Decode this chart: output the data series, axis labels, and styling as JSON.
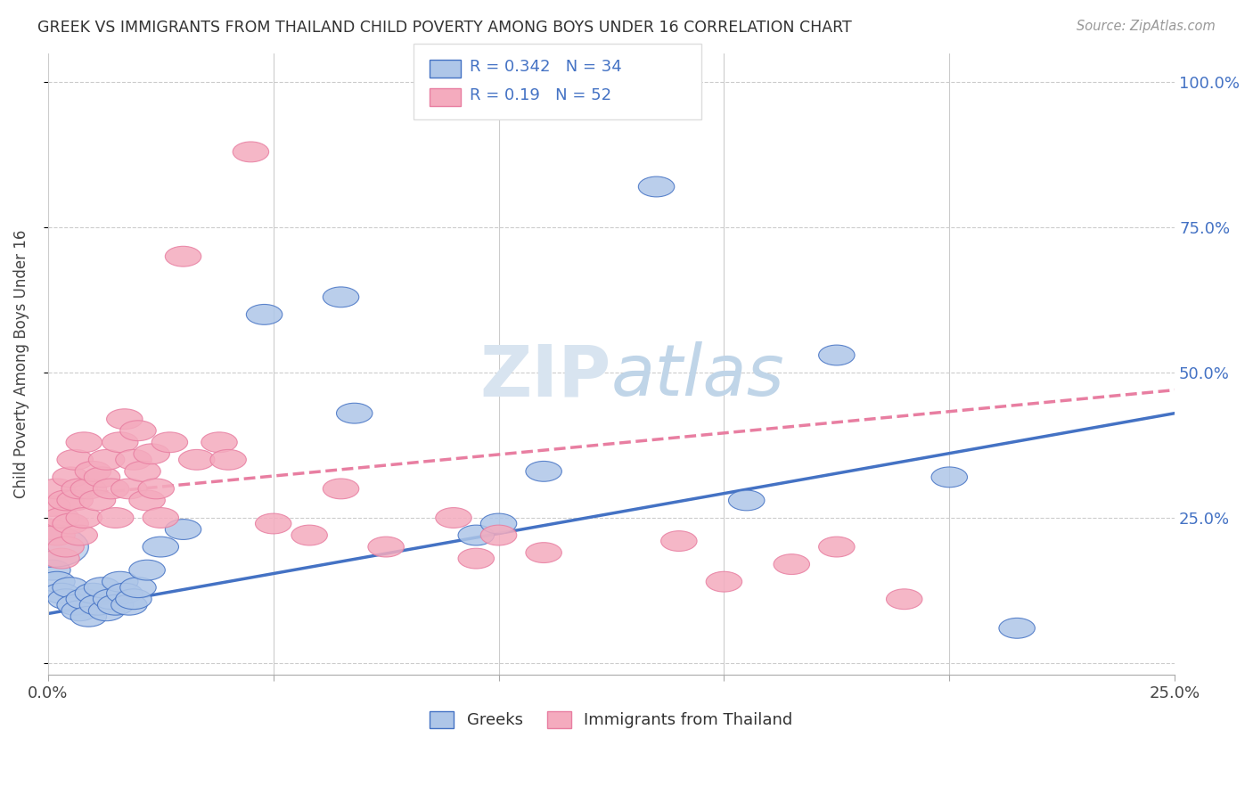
{
  "title": "GREEK VS IMMIGRANTS FROM THAILAND CHILD POVERTY AMONG BOYS UNDER 16 CORRELATION CHART",
  "source": "Source: ZipAtlas.com",
  "ylabel": "Child Poverty Among Boys Under 16",
  "yticks": [
    "",
    "25.0%",
    "50.0%",
    "75.0%",
    "100.0%"
  ],
  "ytick_vals": [
    0,
    0.25,
    0.5,
    0.75,
    1.0
  ],
  "xlim": [
    0,
    0.25
  ],
  "ylim": [
    -0.02,
    1.05
  ],
  "blue_color": "#AEC6E8",
  "pink_color": "#F4ABBE",
  "line_blue": "#4472C4",
  "line_pink": "#E87EA1",
  "R_blue": 0.342,
  "N_blue": 34,
  "R_pink": 0.19,
  "N_pink": 52,
  "blue_line_x0": 0.0,
  "blue_line_y0": 0.085,
  "blue_line_x1": 0.25,
  "blue_line_y1": 0.43,
  "pink_line_x0": 0.0,
  "pink_line_y0": 0.285,
  "pink_line_x1": 0.25,
  "pink_line_y1": 0.47,
  "greek_x": [
    0.001,
    0.002,
    0.003,
    0.004,
    0.005,
    0.006,
    0.007,
    0.008,
    0.009,
    0.01,
    0.011,
    0.012,
    0.013,
    0.014,
    0.015,
    0.016,
    0.017,
    0.018,
    0.019,
    0.02,
    0.022,
    0.025,
    0.03,
    0.048,
    0.065,
    0.068,
    0.095,
    0.1,
    0.11,
    0.135,
    0.155,
    0.175,
    0.2,
    0.215
  ],
  "greek_y": [
    0.16,
    0.14,
    0.12,
    0.11,
    0.13,
    0.1,
    0.09,
    0.11,
    0.08,
    0.12,
    0.1,
    0.13,
    0.09,
    0.11,
    0.1,
    0.14,
    0.12,
    0.1,
    0.11,
    0.13,
    0.16,
    0.2,
    0.23,
    0.6,
    0.63,
    0.43,
    0.22,
    0.24,
    0.33,
    0.82,
    0.28,
    0.53,
    0.32,
    0.06
  ],
  "thai_x": [
    0.001,
    0.001,
    0.002,
    0.002,
    0.003,
    0.003,
    0.004,
    0.004,
    0.005,
    0.005,
    0.006,
    0.006,
    0.007,
    0.007,
    0.008,
    0.008,
    0.009,
    0.01,
    0.011,
    0.012,
    0.013,
    0.014,
    0.015,
    0.016,
    0.017,
    0.018,
    0.019,
    0.02,
    0.021,
    0.022,
    0.023,
    0.024,
    0.025,
    0.027,
    0.03,
    0.033,
    0.038,
    0.04,
    0.045,
    0.05,
    0.058,
    0.065,
    0.075,
    0.09,
    0.095,
    0.1,
    0.11,
    0.14,
    0.15,
    0.165,
    0.175,
    0.19
  ],
  "thai_y": [
    0.27,
    0.23,
    0.3,
    0.22,
    0.25,
    0.18,
    0.28,
    0.2,
    0.32,
    0.24,
    0.35,
    0.28,
    0.3,
    0.22,
    0.38,
    0.25,
    0.3,
    0.33,
    0.28,
    0.32,
    0.35,
    0.3,
    0.25,
    0.38,
    0.42,
    0.3,
    0.35,
    0.4,
    0.33,
    0.28,
    0.36,
    0.3,
    0.25,
    0.38,
    0.7,
    0.35,
    0.38,
    0.35,
    0.88,
    0.24,
    0.22,
    0.3,
    0.2,
    0.25,
    0.18,
    0.22,
    0.19,
    0.21,
    0.14,
    0.17,
    0.2,
    0.11
  ]
}
